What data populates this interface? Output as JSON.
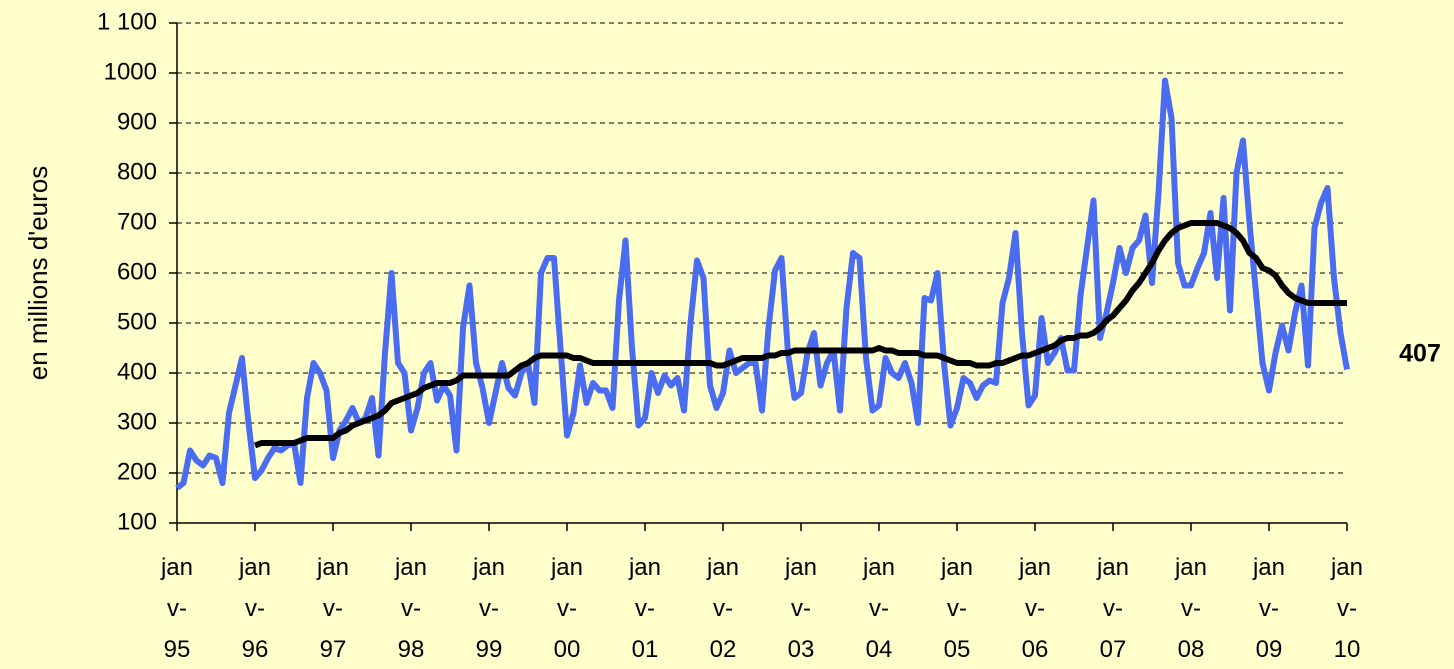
{
  "chart_data": {
    "type": "line",
    "ylabel": "en millions d'euros",
    "annotation": "407",
    "ylim": [
      100,
      1100
    ],
    "yticks": [
      100,
      200,
      300,
      400,
      500,
      600,
      700,
      800,
      900,
      1000,
      {
        "value": 1100,
        "label": "1 100"
      }
    ],
    "grid": true,
    "categories": [
      "janv-95",
      null,
      null,
      null,
      null,
      null,
      null,
      null,
      null,
      null,
      null,
      null,
      "janv-96",
      null,
      null,
      null,
      null,
      null,
      null,
      null,
      null,
      null,
      null,
      null,
      "janv-97",
      null,
      null,
      null,
      null,
      null,
      null,
      null,
      null,
      null,
      null,
      null,
      "janv-98",
      null,
      null,
      null,
      null,
      null,
      null,
      null,
      null,
      null,
      null,
      null,
      "janv-99",
      null,
      null,
      null,
      null,
      null,
      null,
      null,
      null,
      null,
      null,
      null,
      "janv-00",
      null,
      null,
      null,
      null,
      null,
      null,
      null,
      null,
      null,
      null,
      null,
      "janv-01",
      null,
      null,
      null,
      null,
      null,
      null,
      null,
      null,
      null,
      null,
      null,
      "janv-02",
      null,
      null,
      null,
      null,
      null,
      null,
      null,
      null,
      null,
      null,
      null,
      "janv-03",
      null,
      null,
      null,
      null,
      null,
      null,
      null,
      null,
      null,
      null,
      null,
      "janv-04",
      null,
      null,
      null,
      null,
      null,
      null,
      null,
      null,
      null,
      null,
      null,
      "janv-05",
      null,
      null,
      null,
      null,
      null,
      null,
      null,
      null,
      null,
      null,
      null,
      "janv-06",
      null,
      null,
      null,
      null,
      null,
      null,
      null,
      null,
      null,
      null,
      null,
      "janv-07",
      null,
      null,
      null,
      null,
      null,
      null,
      null,
      null,
      null,
      null,
      null,
      "janv-08",
      null,
      null,
      null,
      null,
      null,
      null,
      null,
      null,
      null,
      null,
      null,
      "janv-09",
      null,
      null,
      null,
      null,
      null,
      null,
      null,
      null,
      null,
      null,
      null,
      "janv-10"
    ],
    "series": [
      {
        "color": "#4a6cf0",
        "values": [
          170,
          180,
          245,
          225,
          215,
          235,
          230,
          180,
          320,
          375,
          430,
          300,
          190,
          205,
          230,
          250,
          245,
          255,
          260,
          180,
          350,
          420,
          400,
          365,
          230,
          285,
          305,
          330,
          300,
          310,
          350,
          235,
          440,
          600,
          420,
          400,
          285,
          330,
          400,
          420,
          345,
          375,
          355,
          245,
          490,
          575,
          420,
          370,
          300,
          360,
          420,
          370,
          355,
          400,
          420,
          340,
          600,
          630,
          630,
          450,
          275,
          320,
          415,
          340,
          380,
          365,
          365,
          330,
          545,
          665,
          450,
          295,
          310,
          400,
          360,
          395,
          375,
          390,
          325,
          500,
          625,
          590,
          375,
          330,
          360,
          445,
          400,
          410,
          420,
          420,
          325,
          490,
          605,
          630,
          440,
          350,
          360,
          440,
          480,
          375,
          420,
          445,
          325,
          530,
          640,
          630,
          430,
          325,
          335,
          430,
          400,
          390,
          420,
          380,
          300,
          550,
          545,
          600,
          420,
          295,
          330,
          390,
          380,
          350,
          375,
          385,
          380,
          540,
          590,
          680,
          480,
          335,
          355,
          510,
          420,
          440,
          470,
          405,
          405,
          555,
          650,
          745,
          470,
          520,
          580,
          650,
          600,
          650,
          665,
          715,
          580,
          760,
          985,
          910,
          620,
          575,
          575,
          610,
          640,
          720,
          590,
          750,
          525,
          800,
          865,
          700,
          560,
          420,
          365,
          440,
          495,
          445,
          520,
          575,
          415,
          690,
          740,
          770,
          590,
          480,
          407
        ]
      },
      {
        "color": "#000000",
        "values": [
          null,
          null,
          null,
          null,
          null,
          null,
          null,
          null,
          null,
          null,
          null,
          null,
          255,
          260,
          260,
          260,
          260,
          260,
          260,
          265,
          270,
          270,
          270,
          270,
          270,
          280,
          285,
          295,
          300,
          305,
          310,
          315,
          325,
          340,
          345,
          350,
          355,
          360,
          370,
          375,
          380,
          380,
          380,
          385,
          395,
          395,
          395,
          395,
          395,
          395,
          395,
          395,
          405,
          415,
          420,
          430,
          435,
          435,
          435,
          435,
          435,
          430,
          430,
          425,
          420,
          420,
          420,
          420,
          420,
          420,
          420,
          420,
          420,
          420,
          420,
          420,
          420,
          420,
          420,
          420,
          420,
          420,
          420,
          415,
          415,
          420,
          425,
          430,
          430,
          430,
          430,
          435,
          435,
          440,
          440,
          445,
          445,
          445,
          445,
          445,
          445,
          445,
          445,
          445,
          445,
          445,
          445,
          445,
          450,
          445,
          445,
          440,
          440,
          440,
          440,
          435,
          435,
          435,
          430,
          425,
          420,
          420,
          420,
          415,
          415,
          415,
          420,
          420,
          425,
          430,
          435,
          435,
          440,
          445,
          450,
          455,
          465,
          470,
          470,
          475,
          475,
          480,
          490,
          505,
          515,
          530,
          545,
          565,
          580,
          600,
          620,
          645,
          665,
          680,
          690,
          695,
          700,
          700,
          700,
          700,
          700,
          695,
          690,
          680,
          665,
          640,
          630,
          610,
          605,
          595,
          575,
          560,
          550,
          545,
          540,
          540,
          540,
          540,
          540,
          540,
          540
        ]
      }
    ]
  }
}
